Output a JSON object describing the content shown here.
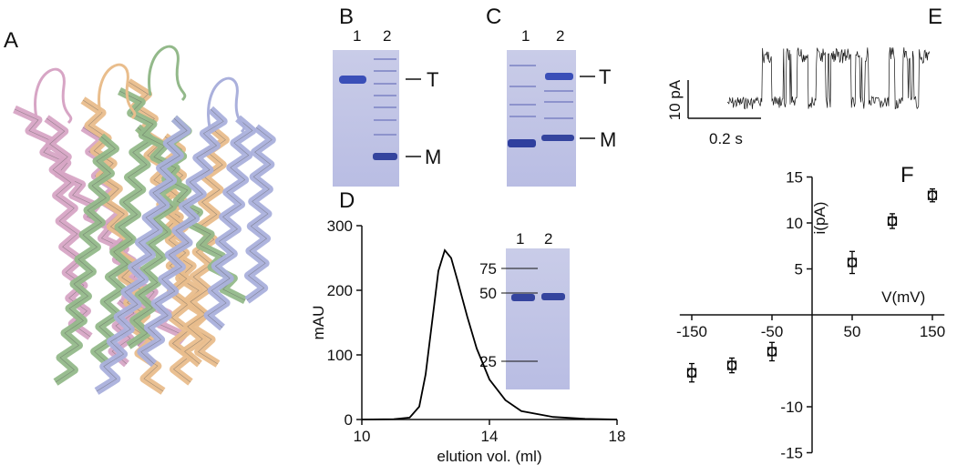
{
  "panel_labels": [
    "A",
    "B",
    "C",
    "D",
    "E",
    "F"
  ],
  "gel_B": {
    "lanes": [
      "1",
      "2"
    ],
    "bands": [
      "T",
      "M"
    ]
  },
  "gel_C": {
    "lanes": [
      "1",
      "2"
    ],
    "bands": [
      "T",
      "M"
    ]
  },
  "trace_E": {
    "scale_current": "10 pA",
    "scale_time": "0.2 s"
  },
  "chart_data": [
    {
      "type": "line",
      "x": [
        10,
        11,
        11.5,
        11.8,
        12,
        12.2,
        12.4,
        12.6,
        12.8,
        13,
        13.3,
        13.6,
        14,
        14.5,
        15,
        16,
        17,
        18
      ],
      "values": [
        0,
        0.5,
        3,
        20,
        70,
        150,
        230,
        262,
        250,
        215,
        160,
        110,
        62,
        30,
        13,
        4,
        1,
        0
      ],
      "color": "#000000",
      "xlim": [
        10,
        18
      ],
      "ylim": [
        0,
        300
      ],
      "xticks": [
        10,
        14,
        18
      ],
      "yticks": [
        0,
        100,
        200,
        300
      ],
      "xlabel": "elution vol. (ml)",
      "ylabel": "mAU",
      "inset": {
        "lanes": [
          "1",
          "2"
        ],
        "markers": [
          75,
          50,
          25
        ]
      }
    },
    {
      "type": "scatter",
      "x": [
        -150,
        -100,
        -50,
        50,
        100,
        150
      ],
      "values": [
        -6.3,
        -5.5,
        -4,
        5.7,
        10.2,
        13
      ],
      "errors": [
        1,
        0.8,
        1,
        1.2,
        0.8,
        0.7
      ],
      "color": "#000000",
      "xlim": [
        -165,
        165
      ],
      "ylim": [
        -15,
        15
      ],
      "xticks": [
        -150,
        -50,
        50,
        150
      ],
      "yticks": [
        15,
        10,
        5,
        -10,
        -15
      ],
      "xlabel": "V(mV)",
      "ylabel": "i(pA)"
    }
  ]
}
